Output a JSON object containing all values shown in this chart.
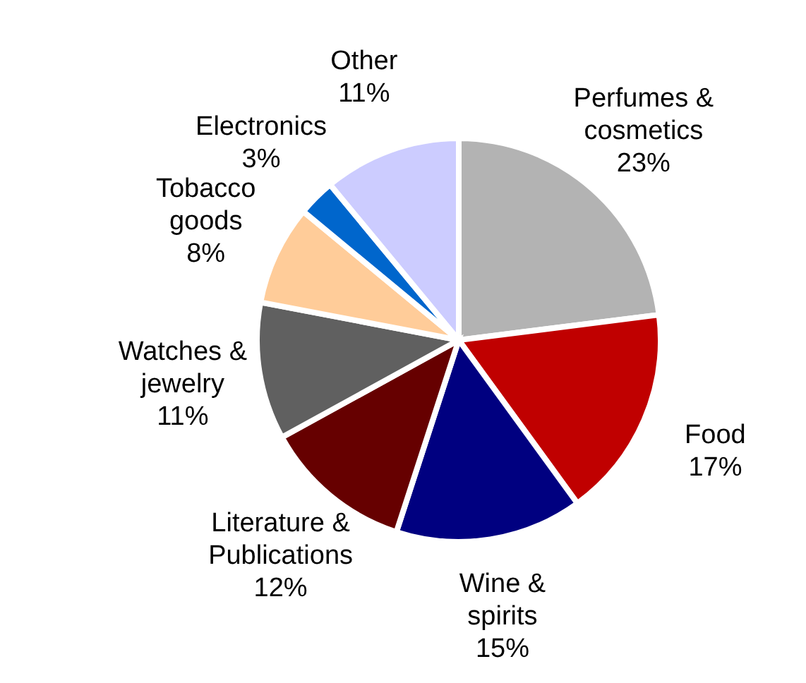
{
  "chart_data": {
    "type": "pie",
    "categories": [
      "Perfumes & cosmetics",
      "Food",
      "Wine & spirits",
      "Literature & Publications",
      "Watches & jewelry",
      "Tobacco goods",
      "Electronics",
      "Other"
    ],
    "values": [
      23,
      17,
      15,
      12,
      11,
      8,
      3,
      11
    ],
    "value_labels": [
      "23%",
      "17%",
      "15%",
      "12%",
      "11%",
      "8%",
      "3%",
      "11%"
    ],
    "colors": [
      "#b3b3b3",
      "#c00000",
      "#000080",
      "#660000",
      "#606060",
      "#ffcc99",
      "#0066cc",
      "#ccccff"
    ],
    "legend": false
  }
}
